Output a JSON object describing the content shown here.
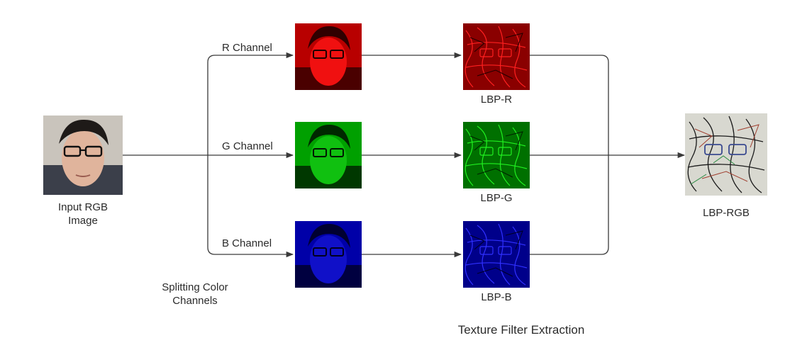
{
  "input": {
    "line1": "Input RGB",
    "line2": "Image"
  },
  "channels": {
    "r": {
      "label": "R Channel",
      "lbp_label": "LBP-R",
      "color": "#e00000"
    },
    "g": {
      "label": "G Channel",
      "lbp_label": "LBP-G",
      "color": "#00c000"
    },
    "b": {
      "label": "B Channel",
      "lbp_label": "LBP-B",
      "color": "#0000d8"
    }
  },
  "splitting": {
    "line1": "Splitting Color",
    "line2": "Channels"
  },
  "texture": {
    "title": "Texture Filter Extraction"
  },
  "output": {
    "label": "LBP-RGB"
  },
  "connector_color": "#3a3a3a"
}
